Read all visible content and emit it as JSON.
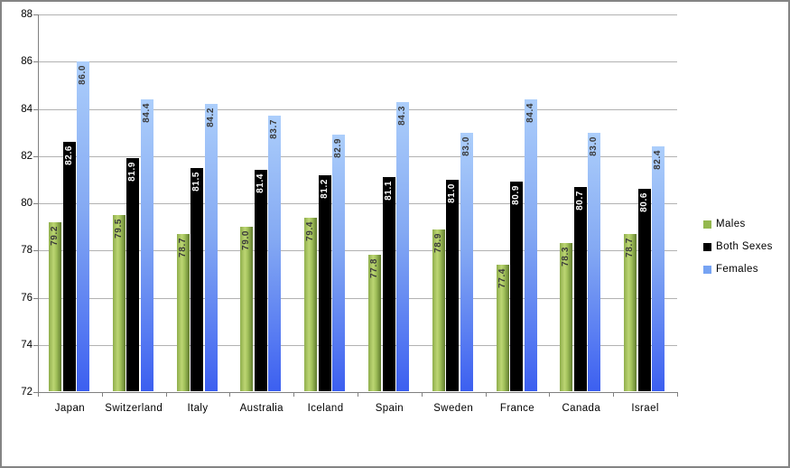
{
  "chart_data": {
    "type": "bar",
    "categories": [
      "Japan",
      "Switzerland",
      "Italy",
      "Australia",
      "Iceland",
      "Spain",
      "Sweden",
      "France",
      "Canada",
      "Israel"
    ],
    "series": [
      {
        "name": "Males",
        "values": [
          79.2,
          79.5,
          78.7,
          79.0,
          79.4,
          77.8,
          78.9,
          77.4,
          78.3,
          78.7
        ],
        "gradient_dir": "90deg",
        "gradient_stops": [
          "#8fae4c 0%",
          "#bcd573 38%",
          "#a2c15b 60%",
          "#607c2e 100%"
        ],
        "label_color": "#3a3a3a",
        "legend_color": "#94b84e"
      },
      {
        "name": "Both Sexes",
        "values": [
          82.6,
          81.9,
          81.5,
          81.4,
          81.2,
          81.1,
          81.0,
          80.9,
          80.7,
          80.6
        ],
        "gradient_dir": "180deg",
        "gradient_stops": [
          "#000000 0%",
          "#000000 100%"
        ],
        "label_color": "#ffffff",
        "legend_color": "#000000"
      },
      {
        "name": "Females",
        "values": [
          86.0,
          84.4,
          84.2,
          83.7,
          82.9,
          84.3,
          83.0,
          84.4,
          83.0,
          82.4
        ],
        "gradient_dir": "180deg",
        "gradient_stops": [
          "#accefb 0%",
          "#84a9f3 45%",
          "#5a7ef2 78%",
          "#3c5ff0 100%"
        ],
        "label_color": "#3a3a3a",
        "legend_color": "#76a3f3"
      }
    ],
    "ylim": [
      72,
      88
    ],
    "yticks": [
      "72",
      "74",
      "76",
      "78",
      "80",
      "82",
      "84",
      "86",
      "88"
    ],
    "value_label_decimals": 1,
    "grid": true,
    "legend_position": "right",
    "legend_labels": [
      "Males",
      "Both Sexes",
      "Females"
    ]
  },
  "colors": {
    "gridline": "#b2b2b2",
    "axis": "#808080",
    "frame_border": "#848484",
    "background": "#ffffff"
  }
}
